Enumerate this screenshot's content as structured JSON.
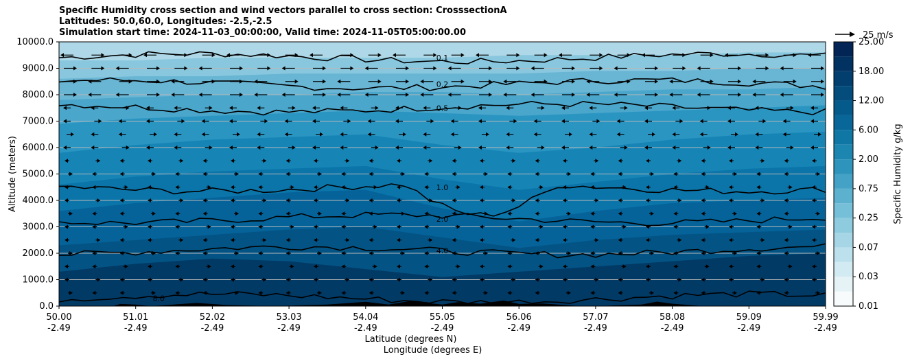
{
  "chart_data": {
    "type": "contourf",
    "title_lines": [
      "Specific Humidity cross section and wind vectors parallel to cross section: CrosssectionA",
      "Latitudes: 50.0,60.0, Longitudes: -2.5,-2.5",
      "Simulation start time: 2024-11-03_00:00:00, Valid time: 2024-11-05T05:00:00.00"
    ],
    "ylabel": "Altitude (meters)",
    "xlabel_lines": [
      "Latitude (degrees N)",
      "Longitude (degrees E)"
    ],
    "ylim": [
      0,
      10000
    ],
    "y_ticks": [
      "0.0",
      "1000.0",
      "2000.0",
      "3000.0",
      "4000.0",
      "5000.0",
      "6000.0",
      "7000.0",
      "8000.0",
      "9000.0",
      "10000.0"
    ],
    "x_ticks": [
      {
        "lat": "50.00",
        "lon": "-2.49"
      },
      {
        "lat": "51.01",
        "lon": "-2.49"
      },
      {
        "lat": "52.02",
        "lon": "-2.49"
      },
      {
        "lat": "53.03",
        "lon": "-2.49"
      },
      {
        "lat": "54.04",
        "lon": "-2.49"
      },
      {
        "lat": "55.05",
        "lon": "-2.49"
      },
      {
        "lat": "56.06",
        "lon": "-2.49"
      },
      {
        "lat": "57.07",
        "lon": "-2.49"
      },
      {
        "lat": "58.08",
        "lon": "-2.49"
      },
      {
        "lat": "59.09",
        "lon": "-2.49"
      },
      {
        "lat": "59.99",
        "lon": "-2.49"
      }
    ],
    "colorbar": {
      "label": "Specific Humidity g/kg",
      "ticks": [
        "0.01",
        "0.03",
        "0.07",
        "0.25",
        "0.75",
        "2.00",
        "6.00",
        "12.00",
        "18.00",
        "25.00"
      ],
      "levels": [
        0.01,
        0.02,
        0.03,
        0.05,
        0.07,
        0.1,
        0.25,
        0.5,
        0.75,
        1.0,
        2.0,
        4.0,
        6.0,
        8.0,
        12.0,
        15.0,
        18.0,
        21.0,
        25.0
      ]
    },
    "contour_levels": [
      {
        "label": "0.1",
        "altitude_m": 9400
      },
      {
        "label": "0.2",
        "altitude_m": 8400
      },
      {
        "label": "0.5",
        "altitude_m": 7500
      },
      {
        "label": "1.0",
        "altitude_m": 4500
      },
      {
        "label": "2.0",
        "altitude_m": 3300
      },
      {
        "label": "4.0",
        "altitude_m": 2100
      },
      {
        "label": "8.0",
        "altitude_m": 300
      }
    ],
    "wind_reference": {
      "label": "25 m/s",
      "speed": 25
    },
    "wind_vector_rows_m": [
      9500,
      9000,
      8500,
      8000,
      7500,
      7000,
      6500,
      6000,
      5500,
      5000,
      4500,
      4000,
      3500,
      3000,
      2500,
      2000,
      1500,
      1000,
      500
    ],
    "gridlines": true
  }
}
